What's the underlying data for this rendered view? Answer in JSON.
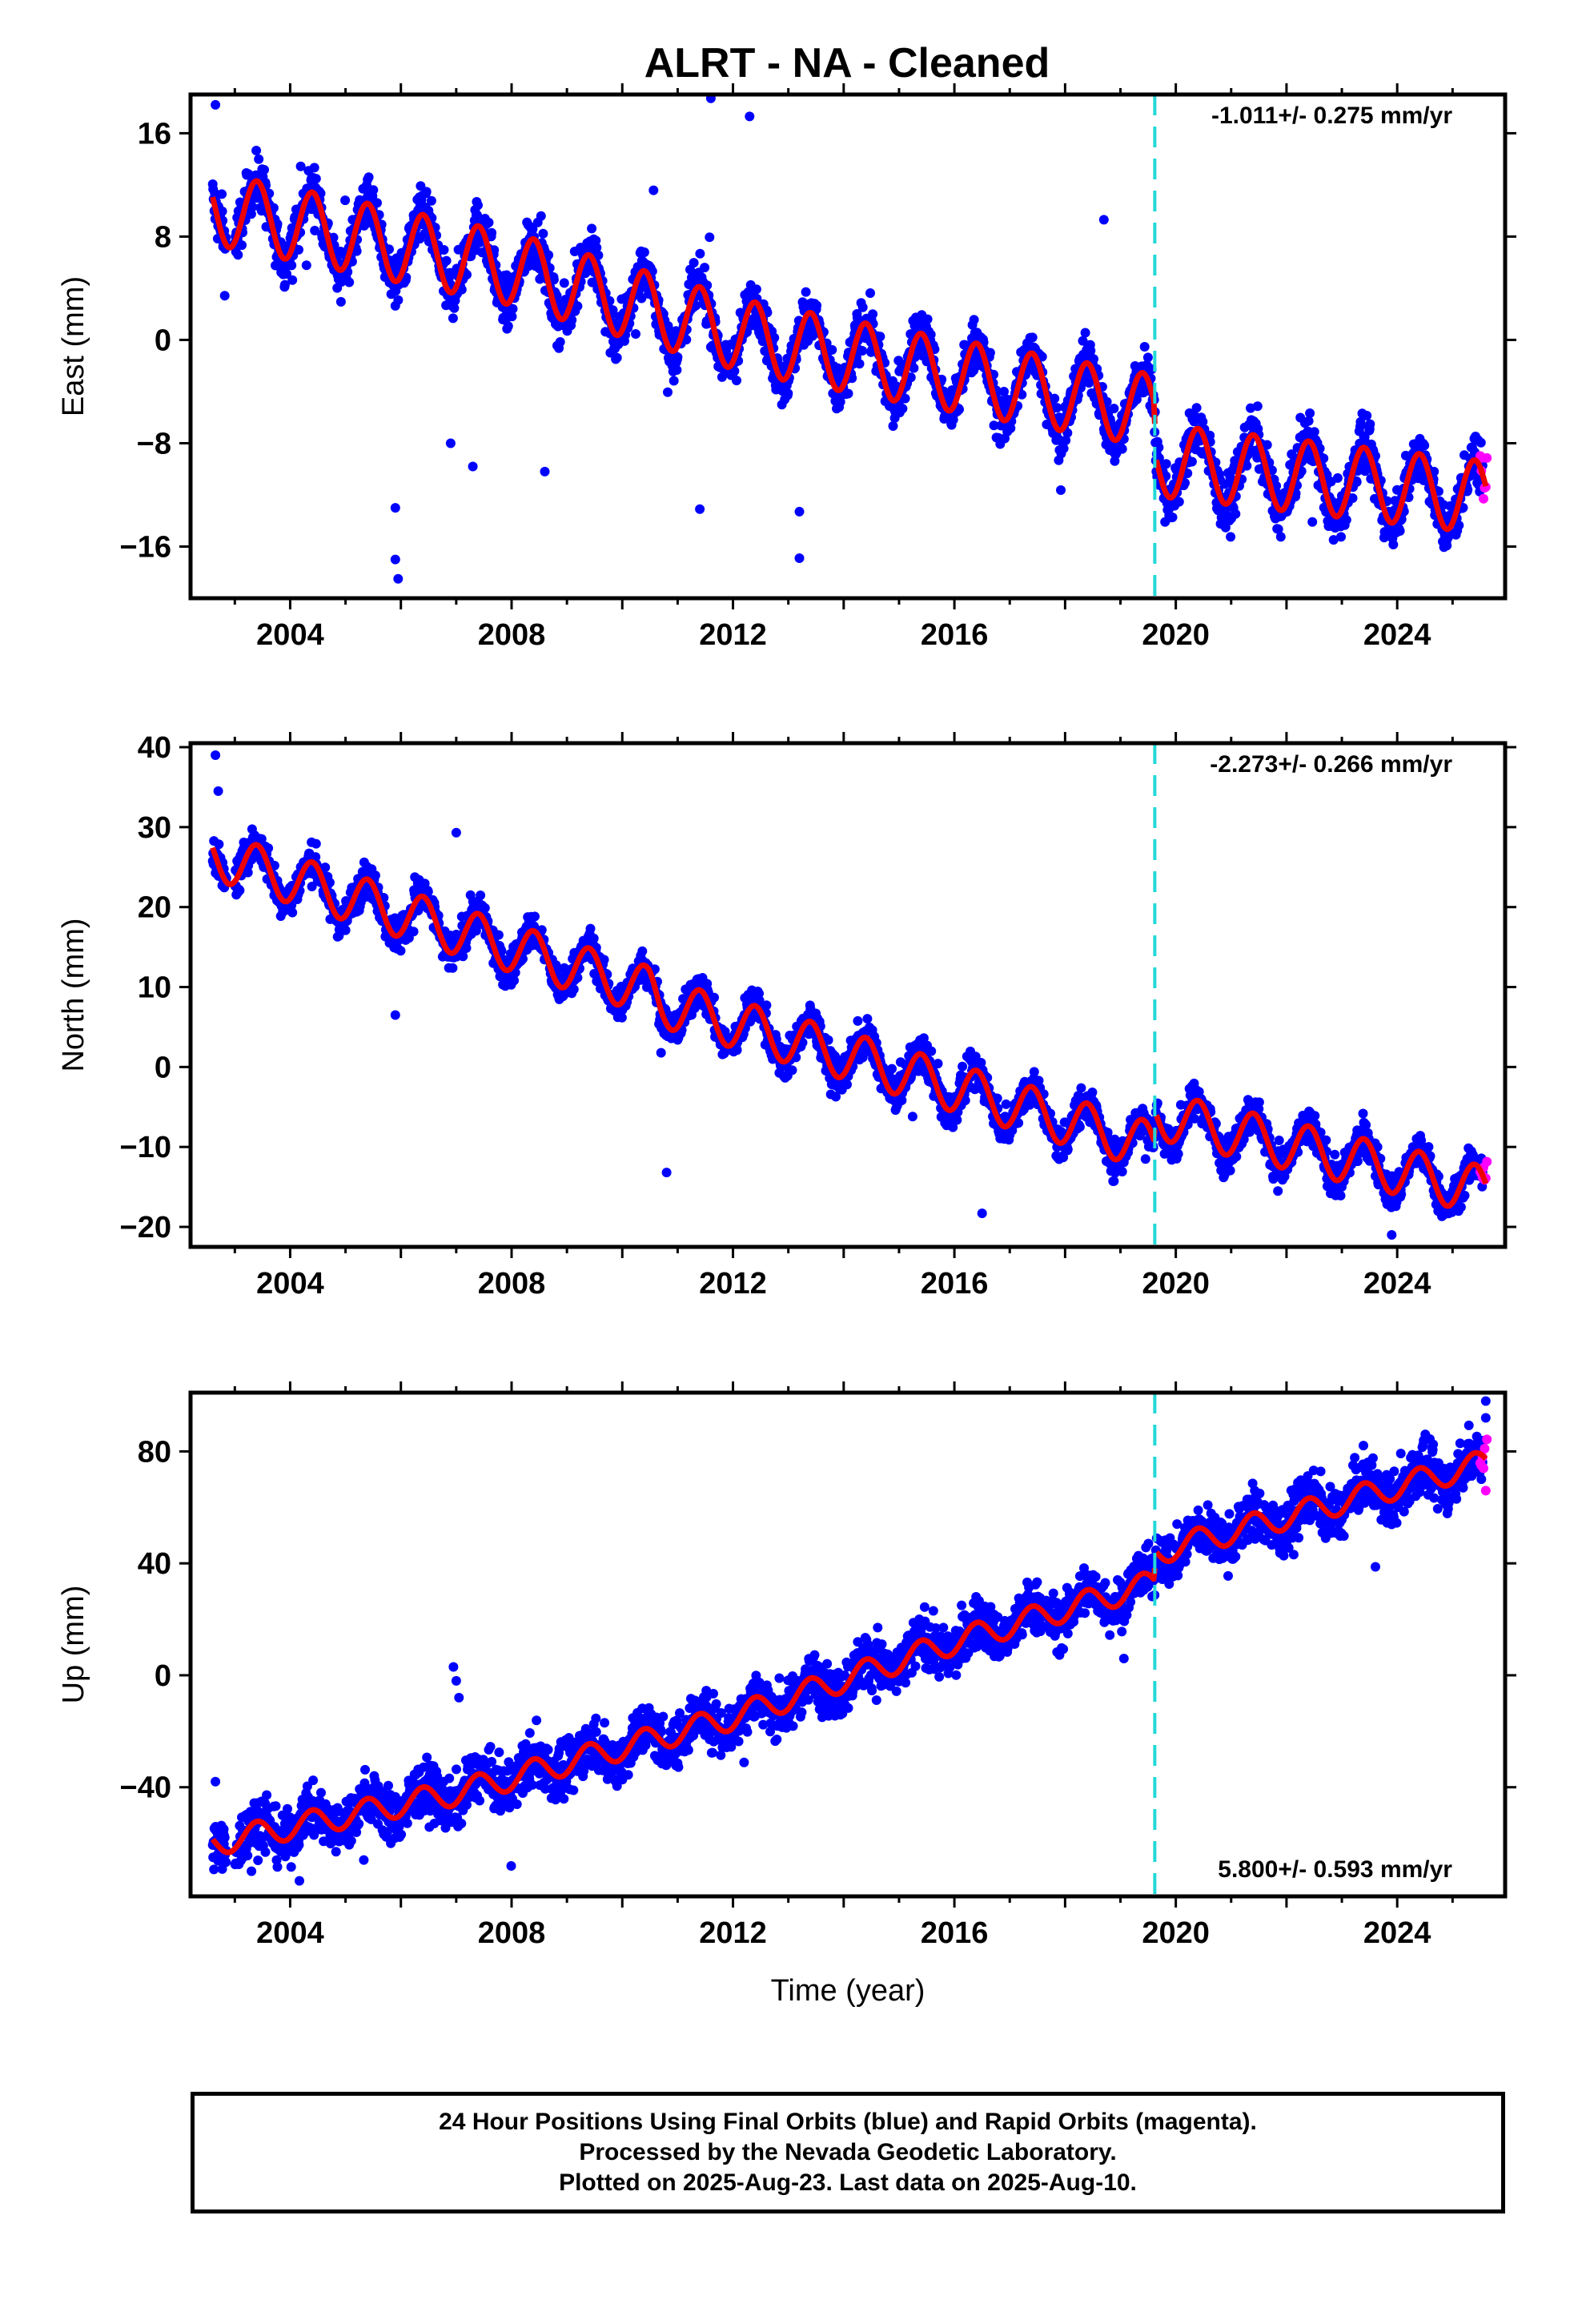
{
  "title": "ALRT  - NA - Cleaned",
  "footer": {
    "line1": "24 Hour Positions Using Final Orbits (blue) and Rapid Orbits (magenta).",
    "line2": "Processed by the Nevada Geodetic Laboratory.",
    "line3": "Plotted on 2025-Aug-23. Last data on 2025-Aug-10."
  },
  "colors": {
    "final_orbits": "#0000ff",
    "rapid_orbits": "#ff00ff",
    "model_fit": "#ee0000",
    "equipment_change": "#22d8d8"
  },
  "chart_data": [
    {
      "type": "scatter",
      "component": "East",
      "ylabel": "East (mm)",
      "xlabel": "",
      "xlim": [
        2002.2,
        2025.95
      ],
      "ylim": [
        -20,
        19
      ],
      "xticks": [
        2004,
        2008,
        2012,
        2016,
        2020,
        2024
      ],
      "yticks": [
        16,
        8,
        0,
        -8,
        -16
      ],
      "rate": "-1.011+/- 0.275 mm/yr",
      "rate_position": "top-right",
      "break_year": 2019.62,
      "trend": {
        "knots": [
          2002.6,
          2008.0,
          2012.3,
          2015.0,
          2019.6,
          2019.65,
          2025.6
        ],
        "values": [
          10.2,
          5.5,
          0.2,
          -2.0,
          -5.5,
          -9.3,
          -12.2
        ]
      },
      "seasonal_amplitude": 2.8,
      "spread": 1.4,
      "series": [
        {
          "name": "Final Orbits",
          "color": "#0000ff",
          "range": [
            2002.6,
            2025.55
          ]
        },
        {
          "name": "Rapid Orbits",
          "color": "#ff00ff",
          "range": [
            2025.5,
            2025.62
          ]
        }
      ],
      "outliers": [
        [
          2002.65,
          18.2
        ],
        [
          2011.6,
          18.7
        ],
        [
          2012.3,
          17.3
        ],
        [
          2005.9,
          -17.0
        ],
        [
          2005.95,
          -18.5
        ],
        [
          2005.9,
          -13.0
        ],
        [
          2008.6,
          -10.2
        ],
        [
          2011.4,
          -13.1
        ],
        [
          2013.2,
          -13.3
        ],
        [
          2013.2,
          -16.9
        ],
        [
          2018.7,
          9.3
        ],
        [
          2006.9,
          -8.0
        ],
        [
          2007.3,
          -9.8
        ],
        [
          2002.7,
          9.8
        ]
      ]
    },
    {
      "type": "scatter",
      "component": "North",
      "ylabel": "North (mm)",
      "xlabel": "",
      "xlim": [
        2002.2,
        2025.95
      ],
      "ylim": [
        -22.5,
        40.5
      ],
      "xticks": [
        2004,
        2008,
        2012,
        2016,
        2020,
        2024
      ],
      "yticks": [
        40,
        30,
        20,
        10,
        0,
        -10,
        -20
      ],
      "rate": "-2.273+/- 0.266 mm/yr",
      "rate_position": "top-right",
      "break_year": 2019.62,
      "trend": {
        "knots": [
          2002.6,
          2010.5,
          2010.7,
          2014.0,
          2019.6,
          2019.65,
          2025.6
        ],
        "values": [
          26.5,
          9.5,
          8.0,
          1.5,
          -10.0,
          -6.0,
          -15.5
        ]
      },
      "seasonal_amplitude": 3.0,
      "spread": 1.6,
      "series": [
        {
          "name": "Final Orbits",
          "color": "#0000ff",
          "range": [
            2002.6,
            2025.55
          ]
        },
        {
          "name": "Rapid Orbits",
          "color": "#ff00ff",
          "range": [
            2025.5,
            2025.62
          ]
        }
      ],
      "outliers": [
        [
          2002.65,
          39.0
        ],
        [
          2002.7,
          34.5
        ],
        [
          2016.5,
          -18.3
        ],
        [
          2023.9,
          -21.0
        ],
        [
          2007.0,
          29.3
        ],
        [
          2010.8,
          -13.2
        ],
        [
          2005.9,
          6.5
        ]
      ]
    },
    {
      "type": "scatter",
      "component": "Up",
      "ylabel": "Up (mm)",
      "xlabel": "Time (year)",
      "xlim": [
        2002.2,
        2025.95
      ],
      "ylim": [
        -79,
        101
      ],
      "xticks": [
        2004,
        2008,
        2012,
        2016,
        2020,
        2024
      ],
      "yticks": [
        80,
        40,
        0,
        -40
      ],
      "rate": "5.800+/- 0.593 mm/yr",
      "rate_position": "bottom-right",
      "break_year": 2019.62,
      "trend": {
        "knots": [
          2002.6,
          2007.0,
          2012.0,
          2016.0,
          2019.6,
          2019.65,
          2025.6
        ],
        "values": [
          -60,
          -42,
          -15,
          12,
          33,
          44,
          76
        ]
      },
      "seasonal_amplitude": 4.5,
      "spread": 6.5,
      "series": [
        {
          "name": "Final Orbits",
          "color": "#0000ff",
          "range": [
            2002.6,
            2025.55
          ]
        },
        {
          "name": "Rapid Orbits",
          "color": "#ff00ff",
          "range": [
            2025.5,
            2025.62
          ]
        }
      ],
      "outliers": [
        [
          2002.65,
          -38
        ],
        [
          2006.95,
          3
        ],
        [
          2007.0,
          -2
        ],
        [
          2007.05,
          -8
        ],
        [
          2002.8,
          -55
        ],
        [
          2003.3,
          -70
        ],
        [
          2025.6,
          98
        ],
        [
          2025.6,
          92
        ]
      ]
    }
  ]
}
